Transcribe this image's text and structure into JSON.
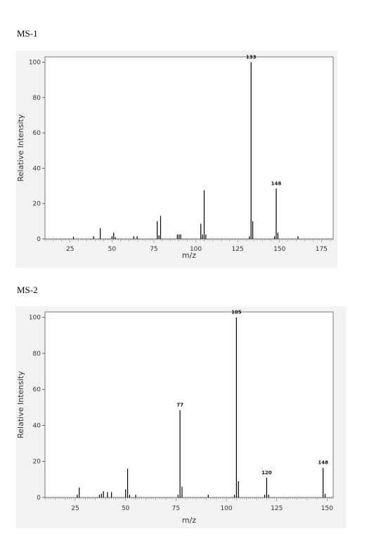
{
  "charts": [
    {
      "heading": "MS-1",
      "chart_data": {
        "type": "bar",
        "xlabel": "m/z",
        "ylabel": "Relative Intensity",
        "xlim": [
          10,
          182
        ],
        "ylim": [
          0,
          103
        ],
        "xticks": [
          25,
          50,
          75,
          100,
          125,
          150,
          175
        ],
        "yticks": [
          0,
          20,
          40,
          60,
          80,
          100
        ],
        "peaks": [
          {
            "x": 27,
            "y": 1.2
          },
          {
            "x": 39,
            "y": 1.5
          },
          {
            "x": 43,
            "y": 6
          },
          {
            "x": 50,
            "y": 1.5
          },
          {
            "x": 51,
            "y": 3.5
          },
          {
            "x": 52,
            "y": 1
          },
          {
            "x": 63,
            "y": 1.5
          },
          {
            "x": 65,
            "y": 1.5
          },
          {
            "x": 77,
            "y": 10
          },
          {
            "x": 78,
            "y": 2
          },
          {
            "x": 79,
            "y": 13
          },
          {
            "x": 89,
            "y": 2.5
          },
          {
            "x": 90,
            "y": 2.5
          },
          {
            "x": 91,
            "y": 2.5
          },
          {
            "x": 103,
            "y": 8.5
          },
          {
            "x": 104,
            "y": 2.5
          },
          {
            "x": 105,
            "y": 27.5
          },
          {
            "x": 106,
            "y": 2.5
          },
          {
            "x": 132,
            "y": 1.5
          },
          {
            "x": 133,
            "y": 100
          },
          {
            "x": 134,
            "y": 10
          },
          {
            "x": 147,
            "y": 1.5
          },
          {
            "x": 148,
            "y": 28.5
          },
          {
            "x": 149,
            "y": 3.5
          },
          {
            "x": 161,
            "y": 1.5
          }
        ],
        "labels": [
          {
            "x": 133,
            "y": 100,
            "text": "133"
          },
          {
            "x": 148,
            "y": 28.5,
            "text": "148"
          }
        ]
      }
    },
    {
      "heading": "MS-2",
      "chart_data": {
        "type": "bar",
        "xlabel": "m/z",
        "ylabel": "Relative Intensity",
        "xlim": [
          10,
          153
        ],
        "ylim": [
          0,
          103
        ],
        "xticks": [
          25,
          50,
          75,
          100,
          125,
          150
        ],
        "yticks": [
          0,
          20,
          40,
          60,
          80,
          100
        ],
        "peaks": [
          {
            "x": 26,
            "y": 1.5
          },
          {
            "x": 27,
            "y": 5.5
          },
          {
            "x": 37,
            "y": 1.5
          },
          {
            "x": 38,
            "y": 2
          },
          {
            "x": 39,
            "y": 3.5
          },
          {
            "x": 41,
            "y": 3
          },
          {
            "x": 43,
            "y": 3
          },
          {
            "x": 50,
            "y": 4.5
          },
          {
            "x": 51,
            "y": 16
          },
          {
            "x": 52,
            "y": 1.5
          },
          {
            "x": 55,
            "y": 1.5
          },
          {
            "x": 76,
            "y": 1.5
          },
          {
            "x": 77,
            "y": 48.5
          },
          {
            "x": 78,
            "y": 6
          },
          {
            "x": 91,
            "y": 1.5
          },
          {
            "x": 104,
            "y": 1.5
          },
          {
            "x": 105,
            "y": 100
          },
          {
            "x": 106,
            "y": 9
          },
          {
            "x": 119,
            "y": 1.5
          },
          {
            "x": 120,
            "y": 11
          },
          {
            "x": 121,
            "y": 1.5
          },
          {
            "x": 148,
            "y": 16.5
          },
          {
            "x": 149,
            "y": 2
          }
        ],
        "labels": [
          {
            "x": 77,
            "y": 48.5,
            "text": "77"
          },
          {
            "x": 105,
            "y": 100,
            "text": "105"
          },
          {
            "x": 120,
            "y": 11,
            "text": "120"
          },
          {
            "x": 148,
            "y": 16.5,
            "text": "148"
          }
        ]
      }
    }
  ]
}
